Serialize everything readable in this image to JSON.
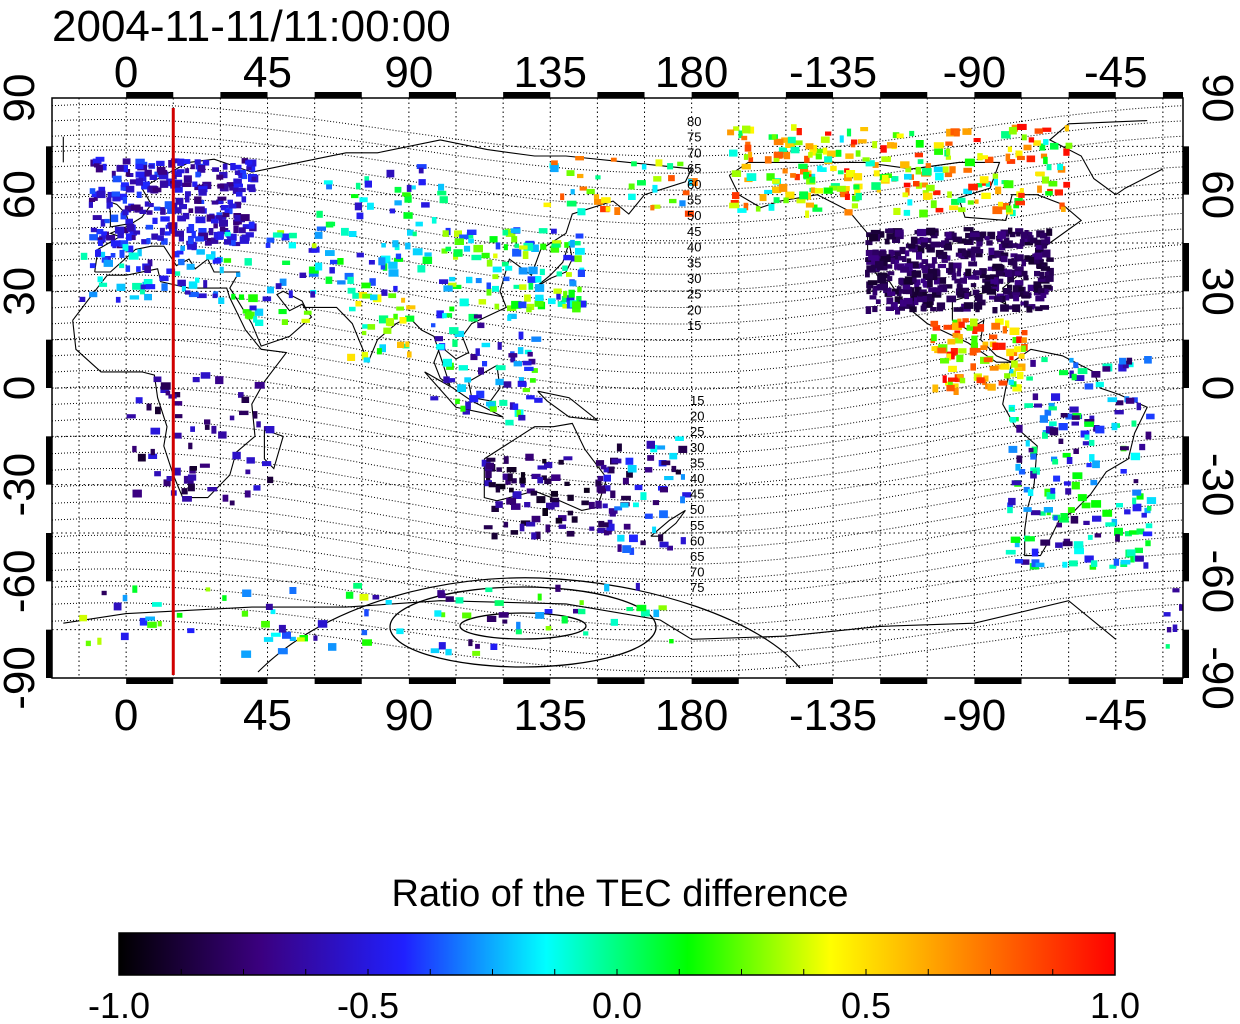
{
  "title": "2004-11-11/11:00:00",
  "map": {
    "top_lon_ticks": [
      "0",
      "45",
      "90",
      "135",
      "180",
      "-135",
      "-90",
      "-45"
    ],
    "bottom_lon_ticks": [
      "0",
      "45",
      "90",
      "135",
      "180",
      "-135",
      "-90",
      "-45"
    ],
    "left_lat_ticks": [
      "90",
      "60",
      "30",
      "0",
      "-30",
      "-60",
      "-90"
    ],
    "right_lat_ticks": [
      "90",
      "60",
      "30",
      "0",
      "-30",
      "-60",
      "-90"
    ],
    "contour_labels_north": [
      "80",
      "75",
      "70",
      "65",
      "60",
      "55",
      "50",
      "45",
      "40",
      "35",
      "30",
      "25",
      "20",
      "15"
    ],
    "contour_labels_south": [
      "15",
      "20",
      "25",
      "30",
      "35",
      "40",
      "45",
      "50",
      "55",
      "60",
      "65",
      "70",
      "75"
    ],
    "marker_line_lon": 15,
    "marker_line_color": "#d00000"
  },
  "colorbar": {
    "title": "Ratio of the TEC difference",
    "ticks": [
      "-1.0",
      "-0.5",
      "0.0",
      "0.5",
      "1.0"
    ],
    "range": [
      -1.0,
      1.0
    ],
    "colormap": [
      "#000000",
      "#3b0080",
      "#2020ff",
      "#00ffff",
      "#00ff00",
      "#ffff00",
      "#ff8000",
      "#ff0000"
    ]
  }
}
